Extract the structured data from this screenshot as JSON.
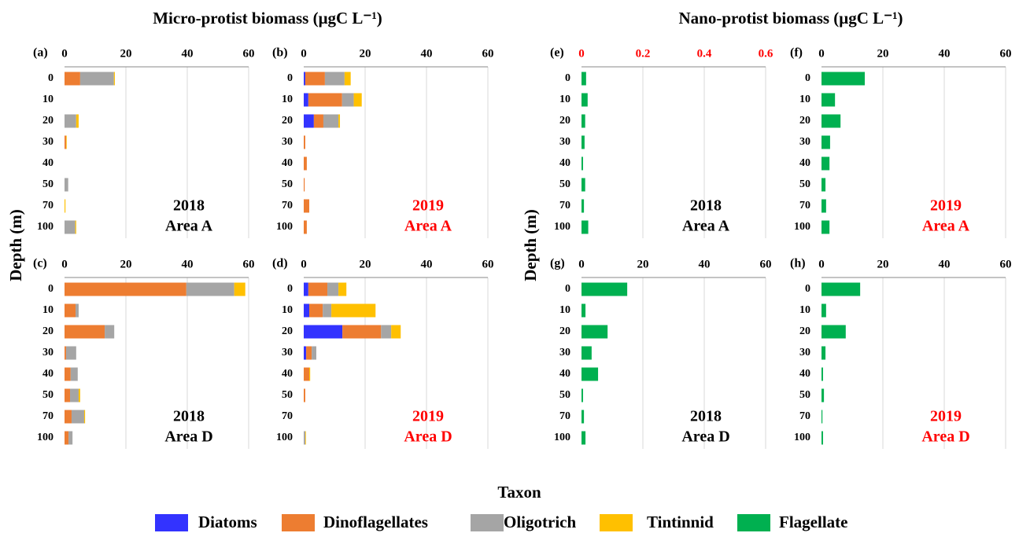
{
  "header": {
    "left": "Micro-protist biomass (μgC L⁻¹)",
    "right": "Nano-protist biomass (μgC L⁻¹)"
  },
  "y_label": "Depth (m)",
  "legend_title": "Taxon",
  "chart_data": [
    {
      "type": "bar",
      "orientation": "horizontal",
      "stacked": true,
      "label": "(a)",
      "annotation": [
        "2018",
        "Area A"
      ],
      "annotation_color": "#000000",
      "categories": [
        "0",
        "10",
        "20",
        "30",
        "40",
        "50",
        "70",
        "100"
      ],
      "series": [
        {
          "name": "Diatoms",
          "color": "#3333ff",
          "values": [
            0,
            0,
            0,
            0,
            0,
            0,
            0,
            0
          ]
        },
        {
          "name": "Dinoflagellates",
          "color": "#ed7d31",
          "values": [
            5.1,
            0,
            0,
            0.5,
            0,
            0,
            0,
            0
          ]
        },
        {
          "name": "Oligotrich",
          "color": "#a5a5a5",
          "values": [
            11,
            0,
            3.8,
            0,
            0,
            1.2,
            0,
            3.5
          ]
        },
        {
          "name": "Tintinnid",
          "color": "#ffc000",
          "values": [
            0.3,
            0,
            0.8,
            0.2,
            0,
            0,
            0.3,
            0.3
          ]
        }
      ],
      "xlim": [
        0,
        60
      ],
      "xticks": [
        0,
        20,
        40,
        60
      ],
      "grid": true
    },
    {
      "type": "bar",
      "orientation": "horizontal",
      "stacked": true,
      "label": "(b)",
      "annotation": [
        "2019",
        "Area A"
      ],
      "annotation_color": "#ff0000",
      "categories": [
        "0",
        "10",
        "20",
        "30",
        "40",
        "50",
        "70",
        "100"
      ],
      "series": [
        {
          "name": "Diatoms",
          "color": "#3333ff",
          "values": [
            0.5,
            1.5,
            3.3,
            0,
            0,
            0,
            0,
            0
          ]
        },
        {
          "name": "Dinoflagellates",
          "color": "#ed7d31",
          "values": [
            6.4,
            11,
            3.1,
            0.5,
            1,
            0.3,
            1.8,
            1
          ]
        },
        {
          "name": "Oligotrich",
          "color": "#a5a5a5",
          "values": [
            6.4,
            3.8,
            4.9,
            0,
            0,
            0,
            0,
            0
          ]
        },
        {
          "name": "Tintinnid",
          "color": "#ffc000",
          "values": [
            2,
            2.6,
            0.5,
            0,
            0,
            0,
            0,
            0
          ]
        }
      ],
      "xlim": [
        0,
        60
      ],
      "xticks": [
        0,
        20,
        40,
        60
      ],
      "grid": true
    },
    {
      "type": "bar",
      "orientation": "horizontal",
      "stacked": true,
      "label": "(e)",
      "annotation": [
        "2018",
        "Area A"
      ],
      "annotation_color": "#000000",
      "tick_color": "#ff0000",
      "categories": [
        "0",
        "10",
        "20",
        "30",
        "40",
        "50",
        "70",
        "100"
      ],
      "series": [
        {
          "name": "Flagellate",
          "color": "#00b050",
          "values": [
            0.015,
            0.02,
            0.012,
            0.01,
            0.005,
            0.012,
            0.008,
            0.022
          ]
        }
      ],
      "xlim": [
        0,
        0.6
      ],
      "xticks": [
        0,
        0.2,
        0.4,
        0.6
      ],
      "grid": true
    },
    {
      "type": "bar",
      "orientation": "horizontal",
      "stacked": true,
      "label": "(f)",
      "annotation": [
        "2019",
        "Area A"
      ],
      "annotation_color": "#ff0000",
      "categories": [
        "0",
        "10",
        "20",
        "30",
        "40",
        "50",
        "70",
        "100"
      ],
      "series": [
        {
          "name": "Flagellate",
          "color": "#00b050",
          "values": [
            14.1,
            4.4,
            6.2,
            2.8,
            2.6,
            1.3,
            1.5,
            2.6
          ]
        }
      ],
      "xlim": [
        0,
        60
      ],
      "xticks": [
        0,
        20,
        40,
        60
      ],
      "grid": true
    },
    {
      "type": "bar",
      "orientation": "horizontal",
      "stacked": true,
      "label": "(c)",
      "annotation": [
        "2018",
        "Area D"
      ],
      "annotation_color": "#000000",
      "categories": [
        "0",
        "10",
        "20",
        "30",
        "40",
        "50",
        "70",
        "100"
      ],
      "series": [
        {
          "name": "Diatoms",
          "color": "#3333ff",
          "values": [
            0,
            0,
            0,
            0,
            0,
            0,
            0,
            0
          ]
        },
        {
          "name": "Dinoflagellates",
          "color": "#ed7d31",
          "values": [
            39.7,
            3.6,
            13.1,
            0.5,
            2,
            1.8,
            2.3,
            1.3
          ]
        },
        {
          "name": "Oligotrich",
          "color": "#a5a5a5",
          "values": [
            15.6,
            1,
            3.1,
            3.3,
            2.3,
            2.8,
            4.1,
            1.3
          ]
        },
        {
          "name": "Tintinnid",
          "color": "#ffc000",
          "values": [
            3.6,
            0,
            0,
            0,
            0,
            0.5,
            0.3,
            0
          ]
        }
      ],
      "xlim": [
        0,
        60
      ],
      "xticks": [
        0,
        20,
        40,
        60
      ],
      "grid": true
    },
    {
      "type": "bar",
      "orientation": "horizontal",
      "stacked": true,
      "label": "(d)",
      "annotation": [
        "2019",
        "Area D"
      ],
      "annotation_color": "#ff0000",
      "categories": [
        "0",
        "10",
        "20",
        "30",
        "40",
        "50",
        "70",
        "100"
      ],
      "series": [
        {
          "name": "Diatoms",
          "color": "#3333ff",
          "values": [
            1.5,
            1.8,
            12.6,
            0.8,
            0,
            0,
            0,
            0
          ]
        },
        {
          "name": "Dinoflagellates",
          "color": "#ed7d31",
          "values": [
            6.2,
            4.4,
            12.6,
            1.8,
            1.8,
            0.5,
            0,
            0
          ]
        },
        {
          "name": "Oligotrich",
          "color": "#a5a5a5",
          "values": [
            3.6,
            2.8,
            3.3,
            1.5,
            0,
            0,
            0,
            0.5
          ]
        },
        {
          "name": "Tintinnid",
          "color": "#ffc000",
          "values": [
            2.6,
            14.4,
            3.1,
            0,
            0.3,
            0,
            0,
            0.2
          ]
        }
      ],
      "xlim": [
        0,
        60
      ],
      "xticks": [
        0,
        20,
        40,
        60
      ],
      "grid": true
    },
    {
      "type": "bar",
      "orientation": "horizontal",
      "stacked": true,
      "label": "(g)",
      "annotation": [
        "2018",
        "Area D"
      ],
      "annotation_color": "#000000",
      "categories": [
        "0",
        "10",
        "20",
        "30",
        "40",
        "50",
        "70",
        "100"
      ],
      "series": [
        {
          "name": "Flagellate",
          "color": "#00b050",
          "values": [
            14.9,
            1.3,
            8.5,
            3.3,
            5.4,
            0.5,
            0.8,
            1.3
          ]
        }
      ],
      "xlim": [
        0,
        60
      ],
      "xticks": [
        0,
        20,
        40,
        60
      ],
      "grid": true
    },
    {
      "type": "bar",
      "orientation": "horizontal",
      "stacked": true,
      "label": "(h)",
      "annotation": [
        "2019",
        "Area D"
      ],
      "annotation_color": "#ff0000",
      "categories": [
        "0",
        "10",
        "20",
        "30",
        "40",
        "50",
        "70",
        "100"
      ],
      "series": [
        {
          "name": "Flagellate",
          "color": "#00b050",
          "values": [
            12.6,
            1.5,
            7.9,
            1.3,
            0.5,
            0.8,
            0.3,
            0.5
          ]
        }
      ],
      "xlim": [
        0,
        60
      ],
      "xticks": [
        0,
        20,
        40,
        60
      ],
      "grid": true
    }
  ]
}
